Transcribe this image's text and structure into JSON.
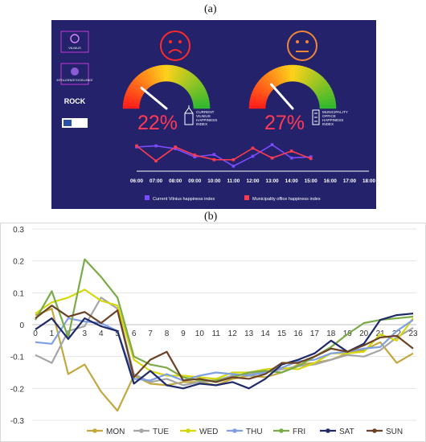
{
  "panel_a_label": "(a)",
  "panel_b_label": "(b)",
  "dashboard": {
    "logos": {
      "vilnius": "VILNIUS",
      "vilnius_sub": "",
      "intelligence": "INTELLIGENCE EXCELLENCE",
      "rock": "ROCK"
    },
    "gauge_left": {
      "value": 0.22,
      "value_text": "22%",
      "caption_lines": [
        "CURRENT",
        "VILNIUS",
        "HAPPINESS",
        "INDEX"
      ],
      "face": "sad-face",
      "face_color": "#ff2a2a"
    },
    "gauge_right": {
      "value": 0.27,
      "value_text": "27%",
      "caption_lines": [
        "MUNICIPALITY",
        "OFFICE",
        "HAPPINESS",
        "INDEX"
      ],
      "face": "neutral-face",
      "face_color": "#f0853a"
    },
    "timeline": {
      "times": [
        "06:00",
        "07:00",
        "08:00",
        "09:00",
        "10:00",
        "11:00",
        "12:00",
        "13:00",
        "14:00",
        "15:00",
        "16:00",
        "17:00",
        "18:00"
      ],
      "series": [
        {
          "name": "Current Vilnius happiness index",
          "color": "#7b4bff",
          "values": [
            0.78,
            0.82,
            0.72,
            0.44,
            0.52,
            0.12,
            0.46,
            0.86,
            0.4,
            0.44
          ]
        },
        {
          "name": "Municipality office happiness index",
          "color": "#ff3b50",
          "values": [
            0.82,
            0.3,
            0.78,
            0.5,
            0.34,
            0.34,
            0.74,
            0.4,
            0.64,
            0.38
          ]
        }
      ]
    }
  },
  "chart_data": {
    "type": "line",
    "title": "",
    "xlabel": "",
    "ylabel": "",
    "x": [
      0,
      1,
      2,
      3,
      4,
      5,
      6,
      7,
      8,
      9,
      10,
      11,
      12,
      13,
      14,
      15,
      16,
      17,
      18,
      19,
      20,
      21,
      22,
      23
    ],
    "ylim": [
      -0.3,
      0.3
    ],
    "yticks": [
      0.3,
      0.2,
      0.1,
      0,
      -0.1,
      -0.2,
      -0.3
    ],
    "ytick_labels": [
      "0.3",
      "0.2",
      "0.1",
      "0",
      "-0.1",
      "-0.2",
      "-0.3"
    ],
    "grid": "horizontal",
    "legend_position": "bottom",
    "series": [
      {
        "name": "MON",
        "color": "#c2a83e",
        "values": [
          0.03,
          0.05,
          -0.155,
          -0.125,
          -0.21,
          -0.27,
          -0.16,
          -0.185,
          -0.19,
          -0.18,
          -0.18,
          -0.19,
          -0.17,
          -0.16,
          -0.165,
          -0.15,
          -0.125,
          -0.12,
          -0.11,
          -0.09,
          -0.08,
          -0.055,
          -0.12,
          -0.09
        ]
      },
      {
        "name": "TUE",
        "color": "#a6a6a6",
        "values": [
          -0.095,
          -0.12,
          -0.02,
          -0.005,
          0.085,
          0.05,
          -0.155,
          -0.18,
          -0.17,
          -0.19,
          -0.18,
          -0.175,
          -0.16,
          -0.155,
          -0.15,
          -0.14,
          -0.13,
          -0.125,
          -0.11,
          -0.095,
          -0.1,
          -0.08,
          -0.04,
          -0.01
        ]
      },
      {
        "name": "WED",
        "color": "#d4d80d",
        "values": [
          0.035,
          0.07,
          0.085,
          0.11,
          0.075,
          0.06,
          -0.11,
          -0.145,
          -0.16,
          -0.16,
          -0.165,
          -0.17,
          -0.15,
          -0.15,
          -0.14,
          -0.135,
          -0.14,
          -0.12,
          -0.09,
          -0.09,
          -0.085,
          -0.03,
          -0.05,
          0.02
        ]
      },
      {
        "name": "THU",
        "color": "#7f9fe4",
        "values": [
          -0.055,
          -0.06,
          0.02,
          0.01,
          0.005,
          -0.02,
          -0.17,
          -0.175,
          -0.155,
          -0.175,
          -0.16,
          -0.15,
          -0.155,
          -0.16,
          -0.15,
          -0.135,
          -0.115,
          -0.11,
          -0.09,
          -0.085,
          -0.075,
          -0.07,
          -0.02,
          0.015
        ]
      },
      {
        "name": "FRI",
        "color": "#7aab48",
        "values": [
          0.015,
          0.105,
          -0.04,
          0.205,
          0.15,
          0.085,
          -0.1,
          -0.125,
          -0.135,
          -0.165,
          -0.175,
          -0.175,
          -0.165,
          -0.15,
          -0.145,
          -0.15,
          -0.13,
          -0.1,
          -0.07,
          -0.03,
          0.005,
          0.015,
          0.02,
          0.025
        ]
      },
      {
        "name": "SAT",
        "color": "#1f2a6b",
        "values": [
          -0.015,
          0.02,
          -0.045,
          0.02,
          -0.005,
          -0.02,
          -0.185,
          -0.145,
          -0.19,
          -0.2,
          -0.185,
          -0.19,
          -0.18,
          -0.2,
          -0.17,
          -0.125,
          -0.11,
          -0.09,
          -0.05,
          -0.085,
          -0.06,
          0.015,
          0.03,
          0.035
        ]
      },
      {
        "name": "SUN",
        "color": "#6b4226",
        "values": [
          0.02,
          0.06,
          0.025,
          0.04,
          0.005,
          0.045,
          -0.165,
          -0.11,
          -0.085,
          -0.175,
          -0.17,
          -0.18,
          -0.165,
          -0.17,
          -0.155,
          -0.12,
          -0.12,
          -0.1,
          -0.075,
          -0.085,
          -0.065,
          -0.04,
          -0.035,
          -0.075
        ]
      }
    ]
  }
}
